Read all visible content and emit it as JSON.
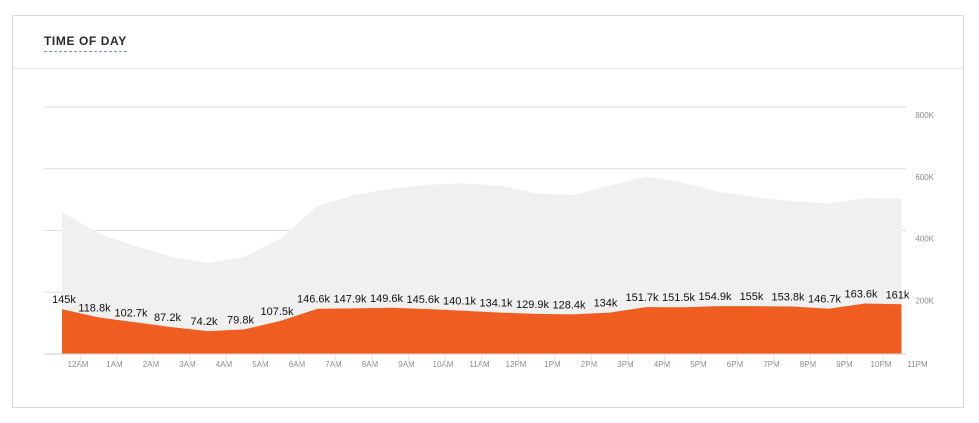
{
  "panel": {
    "title": "TIME OF DAY"
  },
  "chart_data": {
    "type": "area",
    "categories": [
      "12AM",
      "1AM",
      "2AM",
      "3AM",
      "4AM",
      "5AM",
      "6AM",
      "7AM",
      "8AM",
      "9AM",
      "10AM",
      "11AM",
      "12PM",
      "1PM",
      "2PM",
      "3PM",
      "4PM",
      "5PM",
      "6PM",
      "7PM",
      "8PM",
      "9PM",
      "10PM",
      "11PM"
    ],
    "series": [
      {
        "role": "background",
        "color": "#f0f0f0",
        "values": [
          460000,
          390000,
          350000,
          315000,
          295000,
          315000,
          375000,
          480000,
          515000,
          535000,
          548000,
          553000,
          545000,
          520000,
          515000,
          545000,
          575000,
          555000,
          525000,
          508000,
          495000,
          488000,
          505000,
          503000
        ]
      },
      {
        "role": "foreground",
        "color": "#f05d21",
        "values": [
          145000,
          118800,
          102700,
          87200,
          74200,
          79800,
          107500,
          146600,
          147900,
          149600,
          145600,
          140100,
          134100,
          129900,
          128400,
          134000,
          151700,
          151500,
          154900,
          155000,
          153800,
          146700,
          163600,
          161000
        ],
        "labels": [
          "145k",
          "118.8k",
          "102.7k",
          "87.2k",
          "74.2k",
          "79.8k",
          "107.5k",
          "146.6k",
          "147.9k",
          "149.6k",
          "145.6k",
          "140.1k",
          "134.1k",
          "129.9k",
          "128.4k",
          "134k",
          "151.7k",
          "151.5k",
          "154.9k",
          "155k",
          "153.8k",
          "146.7k",
          "163.6k",
          "161k"
        ]
      }
    ],
    "y_ticks": [
      {
        "value": 200000,
        "label": "200K"
      },
      {
        "value": 400000,
        "label": "400K"
      },
      {
        "value": 600000,
        "label": "600K"
      },
      {
        "value": 800000,
        "label": "800K"
      }
    ],
    "ylim": [
      0,
      800000
    ],
    "grid": true
  }
}
